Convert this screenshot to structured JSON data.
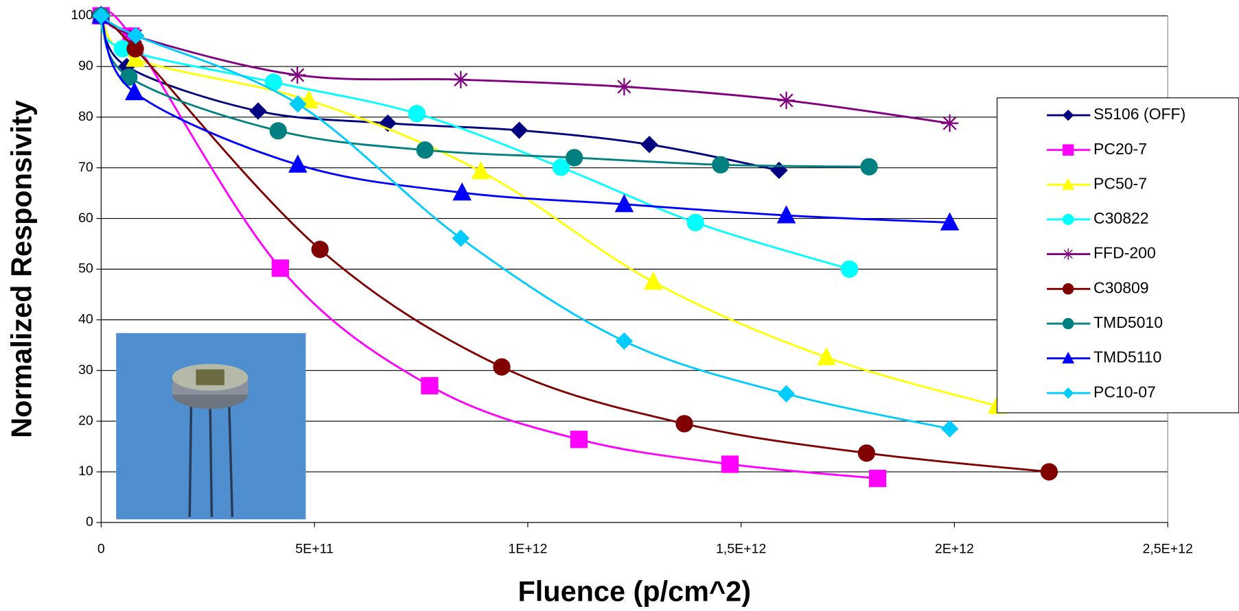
{
  "chart_data": {
    "type": "line",
    "x_label": "Fluence (p/cm^2)",
    "y_label": "Normalized Responsivity",
    "xlim": [
      0,
      2500000000000
    ],
    "ylim": [
      0,
      100
    ],
    "xticks": [
      0,
      {
        "value": 500000000000,
        "label": "5E+11"
      },
      {
        "value": 1000000000000,
        "label": "1E+12"
      },
      {
        "value": 1500000000000,
        "label": "1,5E+12"
      },
      {
        "value": 2000000000000,
        "label": "2E+12"
      },
      {
        "value": 2500000000000,
        "label": "2,5E+12"
      }
    ],
    "yticks": [
      0,
      10,
      20,
      30,
      40,
      50,
      60,
      70,
      80,
      90,
      100
    ],
    "grid": true,
    "legend": "right",
    "series": [
      {
        "name": "S5106 (OFF)",
        "color": "#000080",
        "marker": "diamond",
        "x": [
          0,
          60000000000,
          368000000000,
          672000000000,
          980000000000,
          1285000000000,
          1589000000000
        ],
        "values": [
          100,
          90,
          81.2,
          78.8,
          77.4,
          74.6,
          69.5
        ]
      },
      {
        "name": "PC20-7",
        "color": "#ff00ff",
        "marker": "square",
        "x": [
          0,
          70000000000,
          420000000000,
          770000000000,
          1120000000000,
          1474000000000,
          1820000000000
        ],
        "values": [
          100,
          96,
          50.2,
          27,
          16.4,
          11.5,
          8.7
        ]
      },
      {
        "name": "PC50-7",
        "color": "#ffff00",
        "marker": "triangle",
        "x": [
          0,
          80000000000,
          487000000000,
          890000000000,
          1294000000000,
          1700000000000,
          2100000000000
        ],
        "values": [
          100,
          91.5,
          83.3,
          69.3,
          47.5,
          32.6,
          23
        ]
      },
      {
        "name": "C30822",
        "color": "#00ffff",
        "marker": "circle",
        "x": [
          0,
          50000000000,
          404000000000,
          740000000000,
          1078000000000,
          1393000000000,
          1754000000000
        ],
        "values": [
          100,
          93.5,
          86.9,
          80.7,
          70.1,
          59.2,
          50
        ]
      },
      {
        "name": "FFD-200",
        "color": "#800080",
        "marker": "star",
        "x": [
          0,
          80000000000,
          460000000000,
          843000000000,
          1226000000000,
          1606000000000,
          1989000000000
        ],
        "values": [
          100,
          96,
          88.3,
          87.4,
          86,
          83.3,
          78.8
        ]
      },
      {
        "name": "C30809",
        "color": "#800000",
        "marker": "circle",
        "x": [
          0,
          80000000000,
          513000000000,
          939000000000,
          1367000000000,
          1794000000000,
          2222000000000
        ],
        "values": [
          100,
          93.5,
          53.9,
          30.7,
          19.5,
          13.7,
          10
        ]
      },
      {
        "name": "TMD5010",
        "color": "#008080",
        "marker": "circle",
        "x": [
          0,
          65000000000,
          415000000000,
          759000000000,
          1109000000000,
          1452000000000,
          1800000000000
        ],
        "values": [
          100,
          87.9,
          77.3,
          73.5,
          72,
          70.6,
          70.2
        ]
      },
      {
        "name": "TMD5110",
        "color": "#0000ff",
        "marker": "triangle",
        "x": [
          0,
          78000000000,
          461000000000,
          846000000000,
          1226000000000,
          1606000000000,
          1989000000000
        ],
        "values": [
          100,
          84.9,
          70.6,
          65.1,
          62.8,
          60.6,
          59.2
        ]
      },
      {
        "name": "PC10-07",
        "color": "#00ccff",
        "marker": "diamond",
        "x": [
          0,
          81000000000,
          461000000000,
          843000000000,
          1226000000000,
          1606000000000,
          1989000000000
        ],
        "values": [
          100,
          96.1,
          82.6,
          56.1,
          35.8,
          25.4,
          18.5
        ]
      }
    ]
  }
}
